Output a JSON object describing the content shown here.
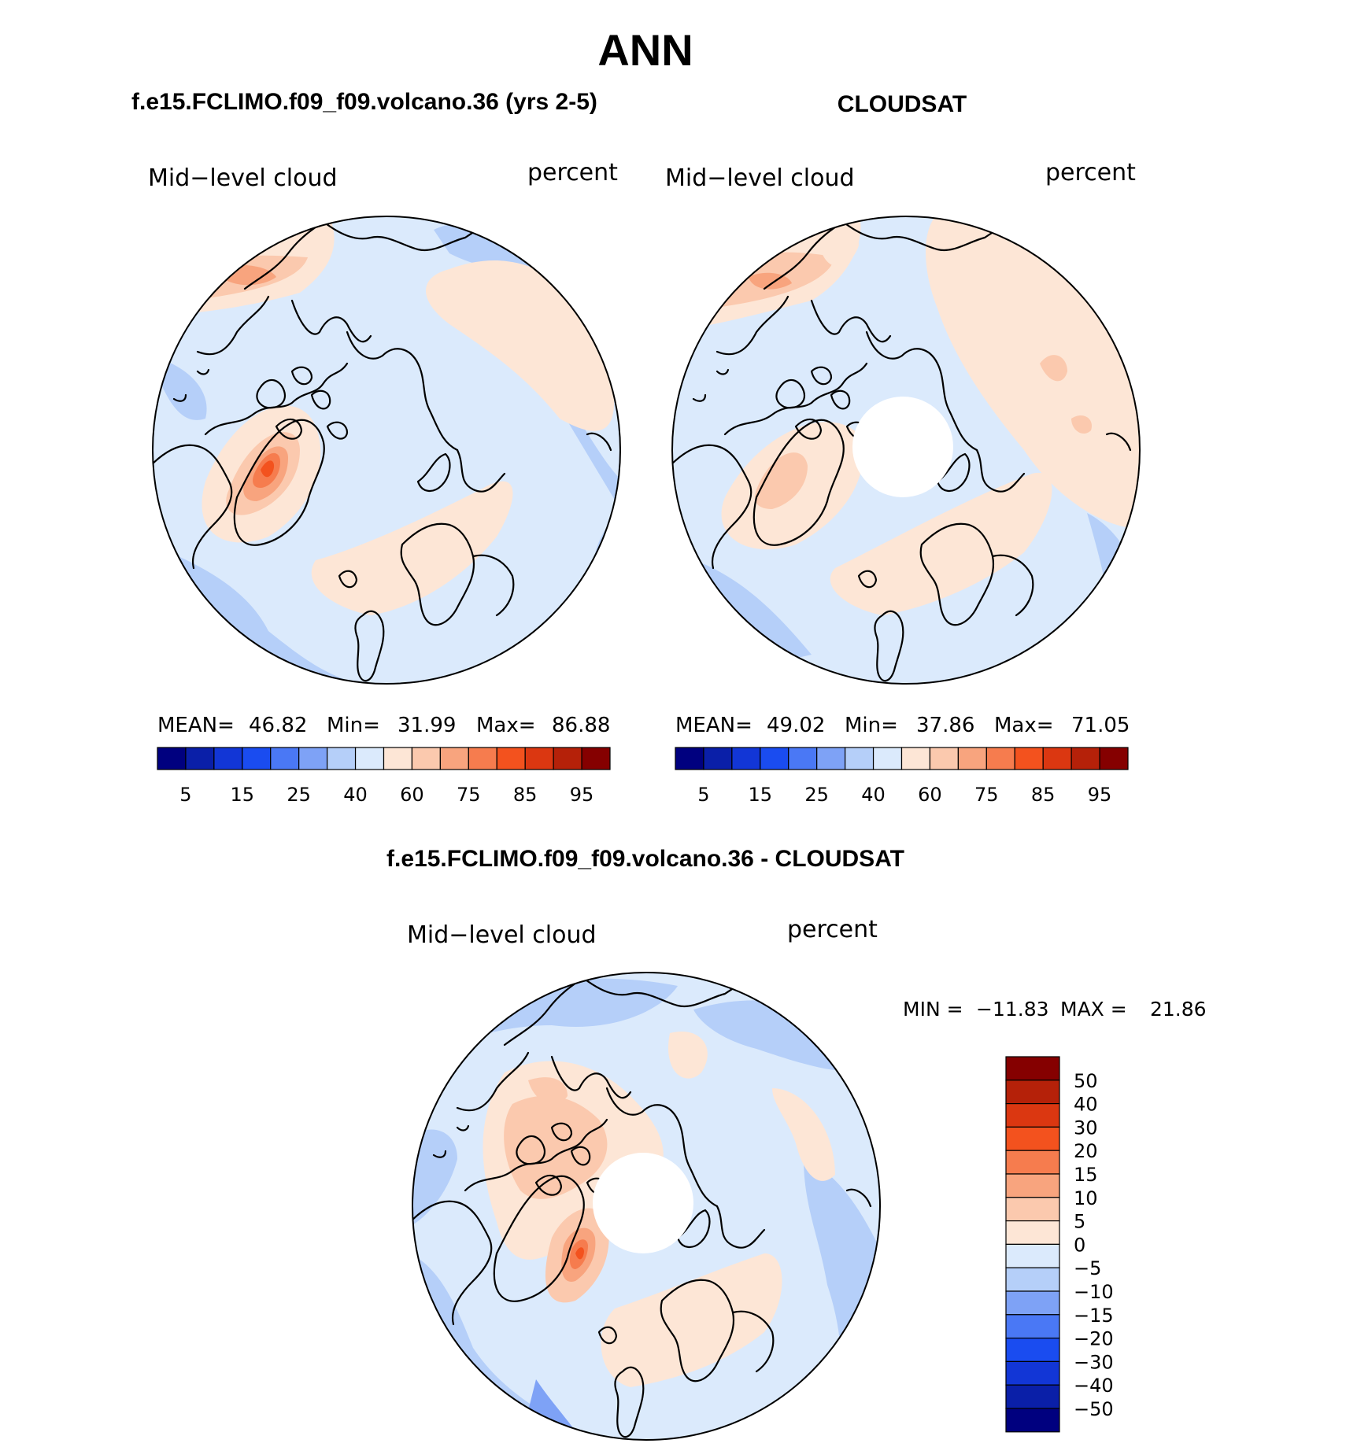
{
  "title": "ANN",
  "panels": [
    {
      "id": "model",
      "header": "f.e15.FCLIMO.f09_f09.volcano.36 (yrs 2-5)",
      "variable": "Mid−level cloud",
      "units": "percent",
      "stats": {
        "mean_label": "MEAN=",
        "mean": "46.82",
        "min_label": "Min=",
        "min": "31.99",
        "max_label": "Max=",
        "max": "86.88"
      },
      "has_pole_hole": false
    },
    {
      "id": "obs",
      "header": "CLOUDSAT",
      "variable": "Mid−level cloud",
      "units": "percent",
      "stats": {
        "mean_label": "MEAN=",
        "mean": "49.02",
        "min_label": "Min=",
        "min": "37.86",
        "max_label": "Max=",
        "max": "71.05"
      },
      "has_pole_hole": true
    },
    {
      "id": "diff",
      "header": "f.e15.FCLIMO.f09_f09.volcano.36 - CLOUDSAT",
      "variable": "Mid−level cloud",
      "units": "percent",
      "stats": {
        "min_label": "MIN =",
        "min": "−11.83",
        "max_label": "MAX =",
        "max": "21.86"
      },
      "has_pole_hole": true
    }
  ],
  "colorbars": {
    "abs": {
      "colors": [
        "#00007f",
        "#0a1fa8",
        "#1236d6",
        "#1a4cf0",
        "#4a78f5",
        "#7ea2f6",
        "#b5cff9",
        "#dbeafc",
        "#fde6d6",
        "#fbc9ae",
        "#f8a47e",
        "#f67c4e",
        "#f3521e",
        "#db3711",
        "#b52109",
        "#850000"
      ],
      "tick_labels": [
        "5",
        "15",
        "25",
        "40",
        "60",
        "75",
        "85",
        "95"
      ]
    },
    "diff": {
      "colors": [
        "#00007f",
        "#0a1fa8",
        "#1236d6",
        "#1a4cf0",
        "#4a78f5",
        "#7ea2f6",
        "#b5cff9",
        "#dbeafc",
        "#fde6d6",
        "#fbc9ae",
        "#f8a47e",
        "#f67c4e",
        "#f3521e",
        "#db3711",
        "#b52109",
        "#850000"
      ],
      "levels": [
        "−50",
        "−40",
        "−30",
        "−20",
        "−15",
        "−10",
        "−5",
        "0",
        "5",
        "10",
        "15",
        "20",
        "30",
        "40",
        "50"
      ]
    }
  },
  "colors": {
    "light_blue": "#dbeafc",
    "mid_blue": "#b5cff9",
    "blue": "#7ea2f6",
    "peach": "#fde6d6",
    "salmon": "#fbc9ae",
    "orange": "#f8a47e",
    "red": "#f3521e",
    "coast": "#000000"
  }
}
